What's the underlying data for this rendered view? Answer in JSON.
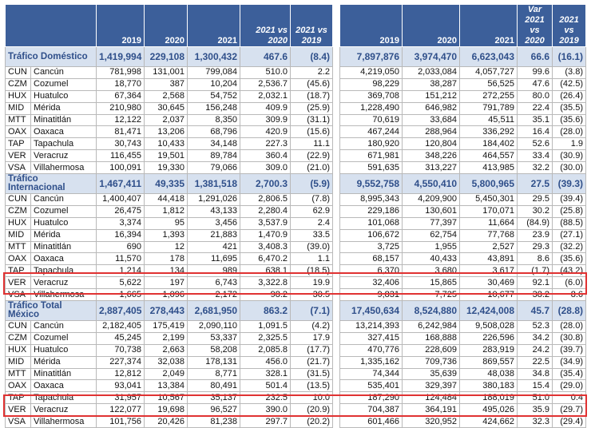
{
  "headers_left": [
    "",
    "2019",
    "2020",
    "2021",
    "2021 vs 2020",
    "2021 vs 2019"
  ],
  "headers_right": [
    "2019",
    "2020",
    "2021",
    "Var 2021 vs 2020",
    "2021 vs 2019"
  ],
  "sections": [
    {
      "title": "Tráfico Doméstico",
      "left": [
        "1,419,994",
        "229,108",
        "1,300,432",
        "467.6",
        "(8.4)"
      ],
      "right": [
        "7,897,876",
        "3,974,470",
        "6,623,043",
        "66.6",
        "(16.1)"
      ],
      "rows": [
        {
          "code": "CUN",
          "name": "Cancún",
          "left": [
            "781,998",
            "131,001",
            "799,084",
            "510.0",
            "2.2"
          ],
          "right": [
            "4,219,050",
            "2,033,084",
            "4,057,727",
            "99.6",
            "(3.8)"
          ]
        },
        {
          "code": "CZM",
          "name": "Cozumel",
          "left": [
            "18,770",
            "387",
            "10,204",
            "2,536.7",
            "(45.6)"
          ],
          "right": [
            "98,229",
            "38,287",
            "56,525",
            "47.6",
            "(42.5)"
          ]
        },
        {
          "code": "HUX",
          "name": "Huatulco",
          "left": [
            "67,364",
            "2,568",
            "54,752",
            "2,032.1",
            "(18.7)"
          ],
          "right": [
            "369,708",
            "151,212",
            "272,255",
            "80.0",
            "(26.4)"
          ]
        },
        {
          "code": "MID",
          "name": "Mérida",
          "left": [
            "210,980",
            "30,645",
            "156,248",
            "409.9",
            "(25.9)"
          ],
          "right": [
            "1,228,490",
            "646,982",
            "791,789",
            "22.4",
            "(35.5)"
          ]
        },
        {
          "code": "MTT",
          "name": "Minatitlán",
          "left": [
            "12,122",
            "2,037",
            "8,350",
            "309.9",
            "(31.1)"
          ],
          "right": [
            "70,619",
            "33,684",
            "45,511",
            "35.1",
            "(35.6)"
          ]
        },
        {
          "code": "OAX",
          "name": "Oaxaca",
          "left": [
            "81,471",
            "13,206",
            "68,796",
            "420.9",
            "(15.6)"
          ],
          "right": [
            "467,244",
            "288,964",
            "336,292",
            "16.4",
            "(28.0)"
          ]
        },
        {
          "code": "TAP",
          "name": "Tapachula",
          "left": [
            "30,743",
            "10,433",
            "34,148",
            "227.3",
            "11.1"
          ],
          "right": [
            "180,920",
            "120,804",
            "184,402",
            "52.6",
            "1.9"
          ]
        },
        {
          "code": "VER",
          "name": "Veracruz",
          "left": [
            "116,455",
            "19,501",
            "89,784",
            "360.4",
            "(22.9)"
          ],
          "right": [
            "671,981",
            "348,226",
            "464,557",
            "33.4",
            "(30.9)"
          ]
        },
        {
          "code": "VSA",
          "name": "Villahermosa",
          "left": [
            "100,091",
            "19,330",
            "79,066",
            "309.0",
            "(21.0)"
          ],
          "right": [
            "591,635",
            "313,227",
            "413,985",
            "32.2",
            "(30.0)"
          ]
        }
      ]
    },
    {
      "title": "Tráfico Internacional",
      "left": [
        "1,467,411",
        "49,335",
        "1,381,518",
        "2,700.3",
        "(5.9)"
      ],
      "right": [
        "9,552,758",
        "4,550,410",
        "5,800,965",
        "27.5",
        "(39.3)"
      ],
      "rows": [
        {
          "code": "CUN",
          "name": "Cancún",
          "left": [
            "1,400,407",
            "44,418",
            "1,291,026",
            "2,806.5",
            "(7.8)"
          ],
          "right": [
            "8,995,343",
            "4,209,900",
            "5,450,301",
            "29.5",
            "(39.4)"
          ]
        },
        {
          "code": "CZM",
          "name": "Cozumel",
          "left": [
            "26,475",
            "1,812",
            "43,133",
            "2,280.4",
            "62.9"
          ],
          "right": [
            "229,186",
            "130,601",
            "170,071",
            "30.2",
            "(25.8)"
          ]
        },
        {
          "code": "HUX",
          "name": "Huatulco",
          "left": [
            "3,374",
            "95",
            "3,456",
            "3,537.9",
            "2.4"
          ],
          "right": [
            "101,068",
            "77,397",
            "11,664",
            "(84.9)",
            "(88.5)"
          ]
        },
        {
          "code": "MID",
          "name": "Mérida",
          "left": [
            "16,394",
            "1,393",
            "21,883",
            "1,470.9",
            "33.5"
          ],
          "right": [
            "106,672",
            "62,754",
            "77,768",
            "23.9",
            "(27.1)"
          ]
        },
        {
          "code": "MTT",
          "name": "Minatitlán",
          "left": [
            "690",
            "12",
            "421",
            "3,408.3",
            "(39.0)"
          ],
          "right": [
            "3,725",
            "1,955",
            "2,527",
            "29.3",
            "(32.2)"
          ]
        },
        {
          "code": "OAX",
          "name": "Oaxaca",
          "left": [
            "11,570",
            "178",
            "11,695",
            "6,470.2",
            "1.1"
          ],
          "right": [
            "68,157",
            "40,433",
            "43,891",
            "8.6",
            "(35.6)"
          ]
        },
        {
          "code": "TAP",
          "name": "Tapachula",
          "left": [
            "1,214",
            "134",
            "989",
            "638.1",
            "(18.5)"
          ],
          "right": [
            "6,370",
            "3,680",
            "3,617",
            "(1.7)",
            "(43.2)"
          ]
        },
        {
          "code": "VER",
          "name": "Veracruz",
          "left": [
            "5,622",
            "197",
            "6,743",
            "3,322.8",
            "19.9"
          ],
          "right": [
            "32,406",
            "15,865",
            "30,469",
            "92.1",
            "(6.0)"
          ]
        },
        {
          "code": "VSA",
          "name": "Villahermosa",
          "left": [
            "1,665",
            "1,096",
            "2,172",
            "98.2",
            "30.5"
          ],
          "right": [
            "9,831",
            "7,725",
            "10,677",
            "38.2",
            "8.6"
          ]
        }
      ]
    },
    {
      "title": "Tráfico Total México",
      "left": [
        "2,887,405",
        "278,443",
        "2,681,950",
        "863.2",
        "(7.1)"
      ],
      "right": [
        "17,450,634",
        "8,524,880",
        "12,424,008",
        "45.7",
        "(28.8)"
      ],
      "rows": [
        {
          "code": "CUN",
          "name": "Cancún",
          "left": [
            "2,182,405",
            "175,419",
            "2,090,110",
            "1,091.5",
            "(4.2)"
          ],
          "right": [
            "13,214,393",
            "6,242,984",
            "9,508,028",
            "52.3",
            "(28.0)"
          ]
        },
        {
          "code": "CZM",
          "name": "Cozumel",
          "left": [
            "45,245",
            "2,199",
            "53,337",
            "2,325.5",
            "17.9"
          ],
          "right": [
            "327,415",
            "168,888",
            "226,596",
            "34.2",
            "(30.8)"
          ]
        },
        {
          "code": "HUX",
          "name": "Huatulco",
          "left": [
            "70,738",
            "2,663",
            "58,208",
            "2,085.8",
            "(17.7)"
          ],
          "right": [
            "470,776",
            "228,609",
            "283,919",
            "24.2",
            "(39.7)"
          ]
        },
        {
          "code": "MID",
          "name": "Mérida",
          "left": [
            "227,374",
            "32,038",
            "178,131",
            "456.0",
            "(21.7)"
          ],
          "right": [
            "1,335,162",
            "709,736",
            "869,557",
            "22.5",
            "(34.9)"
          ]
        },
        {
          "code": "MTT",
          "name": "Minatitlán",
          "left": [
            "12,812",
            "2,049",
            "8,771",
            "328.1",
            "(31.5)"
          ],
          "right": [
            "74,344",
            "35,639",
            "48,038",
            "34.8",
            "(35.4)"
          ]
        },
        {
          "code": "OAX",
          "name": "Oaxaca",
          "left": [
            "93,041",
            "13,384",
            "80,491",
            "501.4",
            "(13.5)"
          ],
          "right": [
            "535,401",
            "329,397",
            "380,183",
            "15.4",
            "(29.0)"
          ]
        },
        {
          "code": "TAP",
          "name": "Tapachula",
          "left": [
            "31,957",
            "10,567",
            "35,137",
            "232.5",
            "10.0"
          ],
          "right": [
            "187,290",
            "124,484",
            "188,019",
            "51.0",
            "0.4"
          ]
        },
        {
          "code": "VER",
          "name": "Veracruz",
          "left": [
            "122,077",
            "19,698",
            "96,527",
            "390.0",
            "(20.9)"
          ],
          "right": [
            "704,387",
            "364,191",
            "495,026",
            "35.9",
            "(29.7)"
          ]
        },
        {
          "code": "VSA",
          "name": "Villahermosa",
          "left": [
            "101,756",
            "20,426",
            "81,238",
            "297.7",
            "(20.2)"
          ],
          "right": [
            "601,466",
            "320,952",
            "424,662",
            "32.3",
            "(29.4)"
          ]
        }
      ]
    }
  ],
  "highlight_color": "#e03232",
  "header_color": "#3c5f9a"
}
